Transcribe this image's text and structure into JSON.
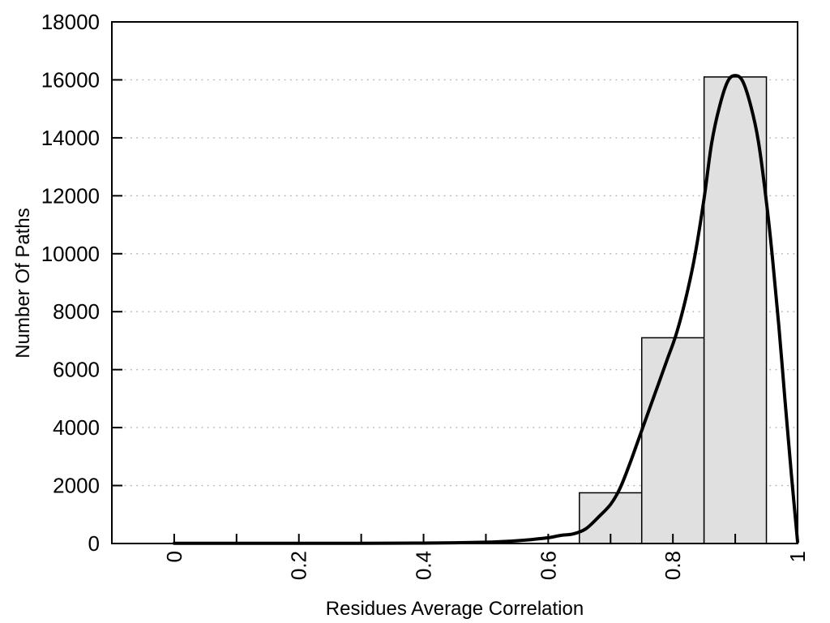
{
  "figure": {
    "background": "#ffffff",
    "plot_border_color": "#000000"
  },
  "chart_data": {
    "type": "histogram_with_fit_line",
    "title": "",
    "xlabel": "Residues Average Correlation",
    "ylabel": "Number Of Paths",
    "xlim": [
      -0.1,
      1.0
    ],
    "ylim": [
      0,
      18000
    ],
    "x_major_ticks": [
      0,
      0.1,
      0.2,
      0.3,
      0.4,
      0.5,
      0.6,
      0.7,
      0.8,
      0.9,
      1.0
    ],
    "x_labeled_ticks": [
      {
        "value": 0,
        "label": "0"
      },
      {
        "value": 0.2,
        "label": "0.2"
      },
      {
        "value": 0.4,
        "label": "0.4"
      },
      {
        "value": 0.6,
        "label": "0.6"
      },
      {
        "value": 0.8,
        "label": "0.8"
      },
      {
        "value": 1,
        "label": "1"
      }
    ],
    "x_tick_label_rotation_deg": -90,
    "y_ticks": [
      {
        "value": 0,
        "label": "0"
      },
      {
        "value": 2000,
        "label": "2000"
      },
      {
        "value": 4000,
        "label": "4000"
      },
      {
        "value": 6000,
        "label": "6000"
      },
      {
        "value": 8000,
        "label": "8000"
      },
      {
        "value": 10000,
        "label": "10000"
      },
      {
        "value": 12000,
        "label": "12000"
      },
      {
        "value": 14000,
        "label": "14000"
      },
      {
        "value": 16000,
        "label": "16000"
      },
      {
        "value": 18000,
        "label": "18000"
      }
    ],
    "grid": {
      "horizontal": true,
      "vertical": false,
      "style": "dotted",
      "color": "#b3b3b3"
    },
    "bars": [
      {
        "x_start": 0.65,
        "x_end": 0.75,
        "count": 1750
      },
      {
        "x_start": 0.75,
        "x_end": 0.85,
        "count": 7100
      },
      {
        "x_start": 0.85,
        "x_end": 0.95,
        "count": 16100
      }
    ],
    "bar_style": {
      "fill": "#e0e0e0",
      "stroke": "#000000"
    },
    "fit_curve": {
      "color": "#000000",
      "peak": {
        "x": 0.9,
        "y": 16150
      },
      "points": [
        [
          0.0,
          5
        ],
        [
          0.05,
          5
        ],
        [
          0.1,
          5
        ],
        [
          0.15,
          5
        ],
        [
          0.2,
          5
        ],
        [
          0.25,
          6
        ],
        [
          0.3,
          8
        ],
        [
          0.35,
          10
        ],
        [
          0.4,
          15
        ],
        [
          0.45,
          25
        ],
        [
          0.5,
          45
        ],
        [
          0.54,
          80
        ],
        [
          0.57,
          130
        ],
        [
          0.6,
          200
        ],
        [
          0.62,
          280
        ],
        [
          0.64,
          330
        ],
        [
          0.66,
          500
        ],
        [
          0.68,
          900
        ],
        [
          0.7,
          1350
        ],
        [
          0.715,
          1900
        ],
        [
          0.73,
          2700
        ],
        [
          0.745,
          3600
        ],
        [
          0.76,
          4500
        ],
        [
          0.775,
          5400
        ],
        [
          0.79,
          6300
        ],
        [
          0.805,
          7200
        ],
        [
          0.82,
          8400
        ],
        [
          0.835,
          9900
        ],
        [
          0.85,
          11900
        ],
        [
          0.862,
          13800
        ],
        [
          0.875,
          15100
        ],
        [
          0.888,
          15950
        ],
        [
          0.9,
          16150
        ],
        [
          0.912,
          15950
        ],
        [
          0.925,
          15100
        ],
        [
          0.937,
          13900
        ],
        [
          0.95,
          11800
        ],
        [
          0.96,
          9800
        ],
        [
          0.97,
          7500
        ],
        [
          0.98,
          4900
        ],
        [
          0.99,
          2400
        ],
        [
          1.0,
          60
        ]
      ]
    }
  }
}
